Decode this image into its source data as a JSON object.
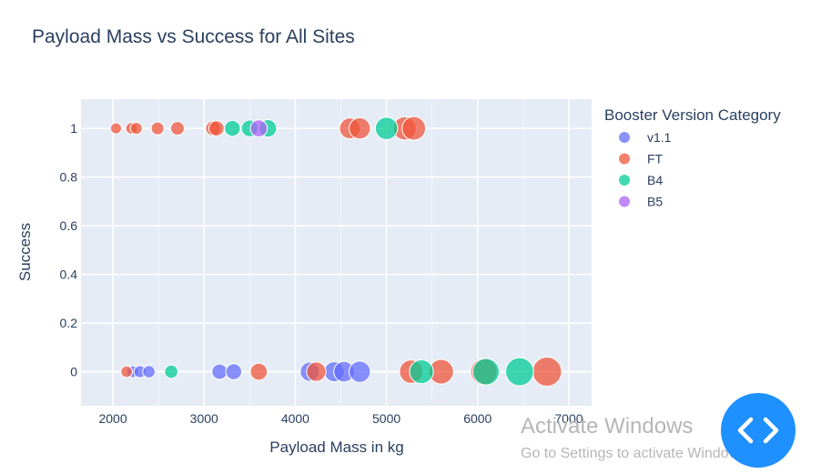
{
  "chart_data": {
    "type": "scatter",
    "title": "Payload Mass vs Success for All Sites",
    "xlabel": "Payload Mass in kg",
    "ylabel": "Success",
    "xlim": [
      1650,
      7250
    ],
    "ylim": [
      -0.14,
      1.12
    ],
    "xticks": [
      2000,
      3000,
      4000,
      5000,
      6000,
      7000
    ],
    "yticks": [
      0,
      0.2,
      0.4,
      0.6,
      0.8,
      1
    ],
    "grid": true,
    "legend": {
      "title": "Booster Version Category",
      "placement": "right"
    },
    "series": [
      {
        "name": "v1.1",
        "color": "#636efa",
        "points": [
          {
            "x": 2216,
            "y": 0
          },
          {
            "x": 2296,
            "y": 0
          },
          {
            "x": 2395,
            "y": 0
          },
          {
            "x": 3170,
            "y": 0
          },
          {
            "x": 3325,
            "y": 0
          },
          {
            "x": 4159,
            "y": 0
          },
          {
            "x": 4428,
            "y": 0
          },
          {
            "x": 4535,
            "y": 0
          },
          {
            "x": 4707,
            "y": 0
          }
        ]
      },
      {
        "name": "FT",
        "color": "#ef553b",
        "points": [
          {
            "x": 2034,
            "y": 1
          },
          {
            "x": 2205,
            "y": 1
          },
          {
            "x": 2257,
            "y": 1
          },
          {
            "x": 2490,
            "y": 1
          },
          {
            "x": 2708,
            "y": 1
          },
          {
            "x": 3100,
            "y": 1
          },
          {
            "x": 3136,
            "y": 1
          },
          {
            "x": 4600,
            "y": 1
          },
          {
            "x": 4707,
            "y": 1
          },
          {
            "x": 5200,
            "y": 1
          },
          {
            "x": 5300,
            "y": 1
          },
          {
            "x": 2150,
            "y": 0
          },
          {
            "x": 3600,
            "y": 0
          },
          {
            "x": 4230,
            "y": 0
          },
          {
            "x": 5271,
            "y": 0
          },
          {
            "x": 5600,
            "y": 0
          },
          {
            "x": 6070,
            "y": 0
          },
          {
            "x": 6761,
            "y": 0
          }
        ]
      },
      {
        "name": "B4",
        "color": "#00cc96",
        "points": [
          {
            "x": 3310,
            "y": 1
          },
          {
            "x": 3500,
            "y": 1
          },
          {
            "x": 3700,
            "y": 1
          },
          {
            "x": 5000,
            "y": 1
          },
          {
            "x": 2640,
            "y": 0
          },
          {
            "x": 5384,
            "y": 0
          },
          {
            "x": 6092,
            "y": 0
          },
          {
            "x": 6460,
            "y": 0
          }
        ]
      },
      {
        "name": "B5",
        "color": "#ab63fa",
        "points": [
          {
            "x": 3600,
            "y": 1
          }
        ]
      }
    ]
  },
  "watermark": {
    "line1": "Activate Windows",
    "line2": "Go to Settings to activate Windows."
  },
  "nav_button": {
    "icon": "code-chevrons-icon"
  }
}
